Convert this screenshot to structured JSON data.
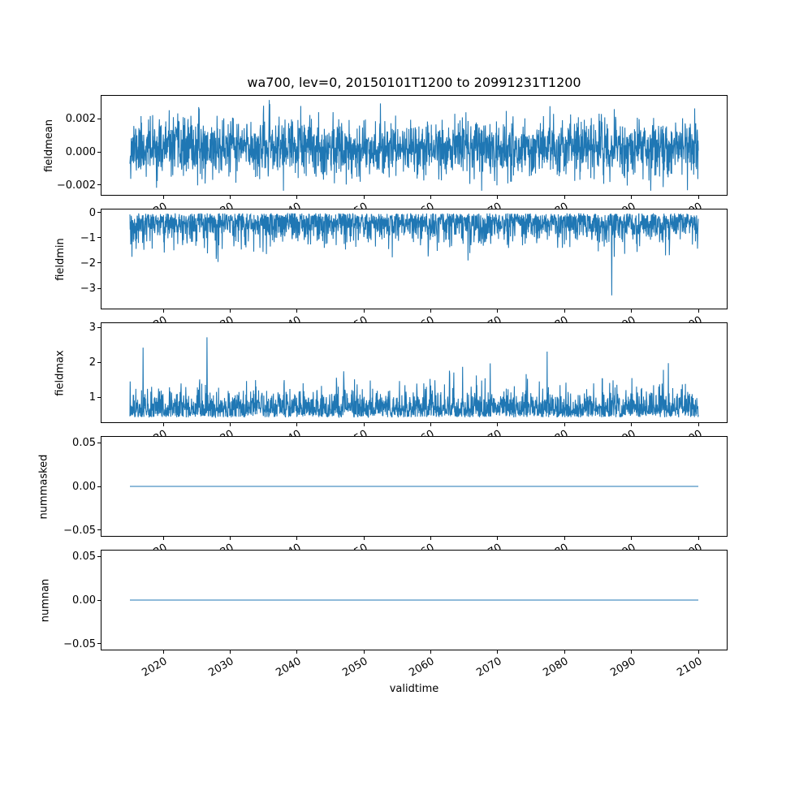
{
  "chart_data": {
    "type": "line",
    "title": "wa700, lev=0, 20150101T1200 to 20991231T1200",
    "xlabel": "validtime",
    "line_color": "#1f77b4",
    "grid": false,
    "legend": "none",
    "x_data_range": [
      2015.0,
      2100.0
    ],
    "x_axis": {
      "lim": [
        2010.75,
        2104.25
      ],
      "ticks": [
        2020,
        2030,
        2040,
        2050,
        2060,
        2070,
        2080,
        2090,
        2100
      ],
      "tick_labels": [
        "2020",
        "2030",
        "2040",
        "2050",
        "2060",
        "2070",
        "2080",
        "2090",
        "2100"
      ],
      "tick_rotation_deg": 30
    },
    "panels": [
      {
        "ylabel": "fieldmean",
        "ylim": [
          -0.0026,
          0.0034
        ],
        "yticks": [
          0.002,
          0.0,
          -0.002
        ],
        "ytick_labels": [
          "0.002",
          "0.000",
          "−0.002"
        ],
        "series": {
          "name": "fieldmean",
          "kind": "gauss-noise",
          "n": 2200,
          "seed": 11,
          "mean": 0.00025,
          "sd": 0.00085,
          "clip": [
            -0.00235,
            0.00315
          ],
          "spike_prob": 0,
          "approx_range": [
            -0.0023,
            0.0031
          ]
        }
      },
      {
        "ylabel": "fieldmin",
        "ylim": [
          -3.8,
          0.12
        ],
        "yticks": [
          0,
          -1,
          -2,
          -3
        ],
        "ytick_labels": [
          "0",
          "−1",
          "−2",
          "−3"
        ],
        "series": {
          "name": "fieldmin",
          "kind": "halfgauss-noise",
          "n": 2200,
          "seed": 22,
          "sign": -1,
          "offset": 0.03,
          "scale": 0.55,
          "clip": [
            -3.55,
            -0.02
          ],
          "spike_prob": 0.01,
          "spike_scale_range": [
            1.8,
            3.0
          ],
          "approx_range": [
            -3.5,
            -0.02
          ]
        }
      },
      {
        "ylabel": "fieldmax",
        "ylim": [
          0.28,
          3.12
        ],
        "yticks": [
          3,
          2,
          1
        ],
        "ytick_labels": [
          "3",
          "2",
          "1"
        ],
        "series": {
          "name": "fieldmax",
          "kind": "halfgauss-noise",
          "n": 2200,
          "seed": 33,
          "sign": 1,
          "offset": 0.42,
          "scale": 0.38,
          "clip": [
            0.32,
            3.02
          ],
          "spike_prob": 0.012,
          "spike_scale_range": [
            1.6,
            2.6
          ],
          "approx_range": [
            0.35,
            3.0
          ]
        }
      },
      {
        "ylabel": "nummasked",
        "ylim": [
          -0.057,
          0.057
        ],
        "yticks": [
          0.05,
          0.0,
          -0.05
        ],
        "ytick_labels": [
          "0.05",
          "0.00",
          "−0.05"
        ],
        "series": {
          "name": "nummasked",
          "kind": "constant",
          "n": 2,
          "value": 0.0
        }
      },
      {
        "ylabel": "numnan",
        "ylim": [
          -0.057,
          0.057
        ],
        "yticks": [
          0.05,
          0.0,
          -0.05
        ],
        "ytick_labels": [
          "0.05",
          "0.00",
          "−0.05"
        ],
        "series": {
          "name": "numnan",
          "kind": "constant",
          "n": 2,
          "value": 0.0
        }
      }
    ]
  }
}
